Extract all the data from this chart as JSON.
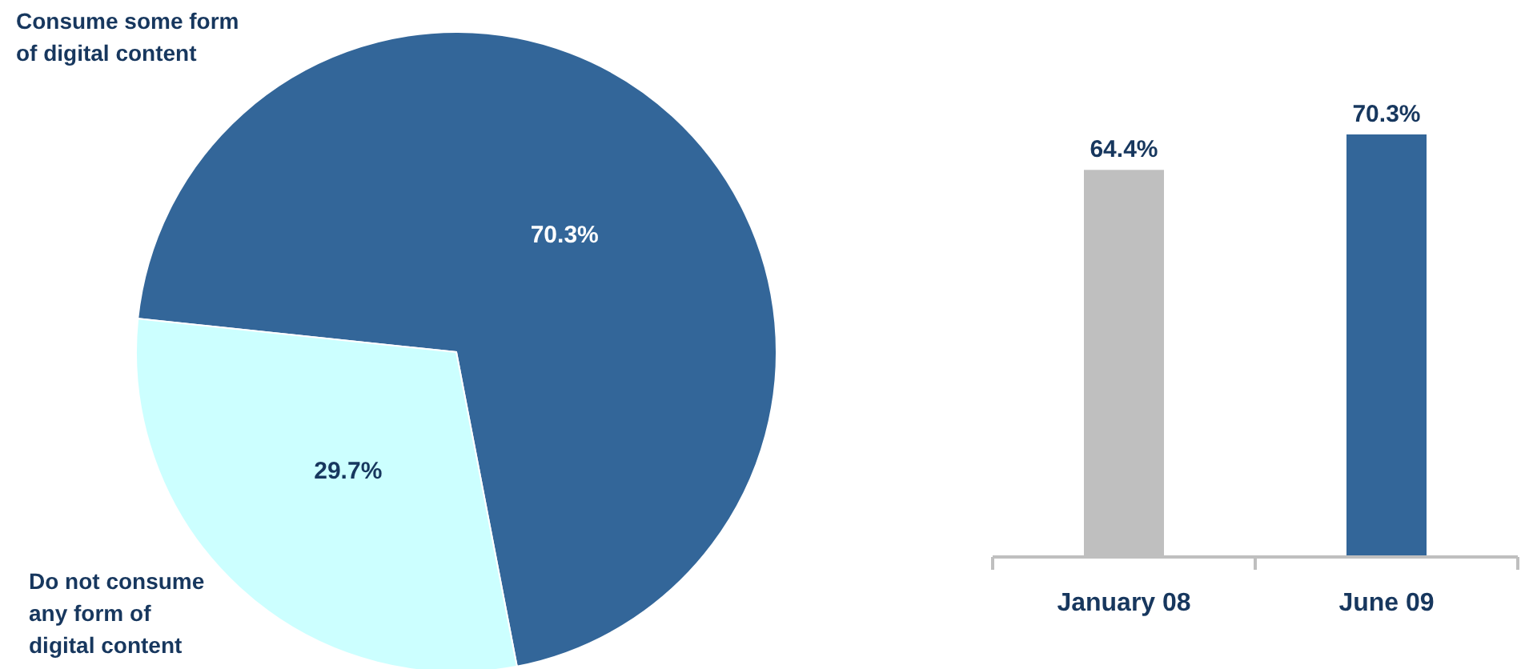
{
  "chart_data": [
    {
      "type": "pie",
      "categories": [
        "Consume some form of digital content",
        "Do not consume any form of digital content"
      ],
      "values": [
        70.3,
        29.7
      ],
      "colors": [
        "#336699",
        "#ccffff"
      ],
      "value_labels": [
        "70.3%",
        "29.7%"
      ]
    },
    {
      "type": "bar",
      "categories": [
        "January 08",
        "June 09"
      ],
      "values": [
        64.4,
        70.3
      ],
      "colors": [
        "#bfbfbf",
        "#336699"
      ],
      "value_labels": [
        "64.4%",
        "70.3%"
      ]
    }
  ]
}
